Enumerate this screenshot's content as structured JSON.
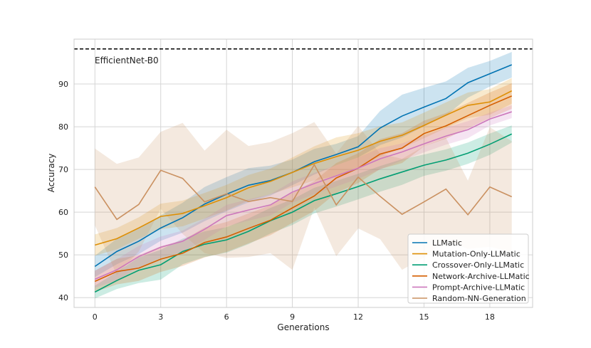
{
  "chart_data": {
    "type": "line",
    "title": "",
    "xlabel": "Generations",
    "ylabel": "Accuracy",
    "xlim": [
      -0.95,
      19.95
    ],
    "ylim": [
      37.7,
      100.5
    ],
    "xticks": [
      0,
      3,
      6,
      9,
      12,
      15,
      18
    ],
    "yticks": [
      40,
      50,
      60,
      70,
      80,
      90
    ],
    "grid": true,
    "legend_position": "bottom-right",
    "x": [
      0,
      1,
      2,
      3,
      4,
      5,
      6,
      7,
      8,
      9,
      10,
      11,
      12,
      13,
      14,
      15,
      16,
      17,
      18,
      19
    ],
    "reference_line": {
      "label": "EfficientNet-B0",
      "value": 98.2,
      "color": "#000000",
      "style": "dashed"
    },
    "series": [
      {
        "name": "LLMatic",
        "color": "#0173b2",
        "values": [
          47.3,
          50.8,
          53.2,
          56.3,
          58.7,
          61.9,
          64.2,
          66.3,
          67.4,
          69.3,
          71.8,
          73.5,
          75.3,
          79.7,
          82.5,
          84.6,
          86.6,
          90.3,
          92.4,
          94.5
        ],
        "band_halfwidth": [
          2.5,
          3,
          3,
          3,
          3.5,
          4,
          4,
          4,
          3.5,
          3,
          3,
          2.5,
          2.5,
          4,
          5,
          4.5,
          4,
          3.5,
          3,
          3
        ]
      },
      {
        "name": "Mutation-Only-LLMatic",
        "color": "#de8f05",
        "values": [
          52.3,
          53.8,
          56.3,
          59.0,
          59.7,
          61.5,
          63.4,
          65.7,
          67.2,
          69.3,
          71.4,
          73.0,
          74.5,
          76.6,
          78.0,
          80.3,
          82.7,
          85.0,
          85.8,
          88.4
        ],
        "band_halfwidth": [
          2.5,
          2.5,
          2.5,
          3,
          3,
          3,
          3,
          3,
          3,
          3.5,
          4,
          4.5,
          4,
          3.5,
          3,
          3,
          3,
          3,
          3,
          3
        ]
      },
      {
        "name": "Crossover-Only-LLMatic",
        "color": "#029e73",
        "values": [
          41.3,
          44.0,
          46.4,
          47.7,
          50.8,
          52.5,
          53.5,
          55.5,
          58.0,
          60.0,
          62.7,
          64.3,
          66.0,
          67.8,
          69.4,
          71.0,
          72.2,
          73.8,
          75.9,
          78.3
        ],
        "band_halfwidth": [
          1.5,
          2,
          3,
          3.5,
          3,
          3,
          3,
          3,
          3,
          3,
          3,
          3,
          3,
          3,
          3,
          2.5,
          2.5,
          2.5,
          2.5,
          2
        ]
      },
      {
        "name": "Network-Archive-LLMatic",
        "color": "#d55e00",
        "values": [
          43.8,
          46.1,
          46.9,
          49.0,
          50.4,
          52.9,
          54.2,
          56.2,
          58.1,
          61.0,
          63.8,
          68.0,
          70.3,
          73.6,
          75.0,
          78.4,
          80.2,
          82.6,
          85.0,
          87.2
        ],
        "band_halfwidth": [
          2.5,
          3,
          3,
          3,
          3,
          3.5,
          3.5,
          3.5,
          3.5,
          3.5,
          3.5,
          3.5,
          3.5,
          3.5,
          3.5,
          3,
          3,
          3,
          3,
          3
        ]
      },
      {
        "name": "Prompt-Archive-LLMatic",
        "color": "#cc78bc",
        "values": [
          44.3,
          46.5,
          49.6,
          51.8,
          53.2,
          56.0,
          59.2,
          60.5,
          61.7,
          64.7,
          66.7,
          68.5,
          70.3,
          72.5,
          74.1,
          76.0,
          77.8,
          79.3,
          81.8,
          83.5
        ],
        "band_halfwidth": [
          2,
          2.5,
          2.5,
          2.5,
          2.5,
          2.5,
          2.5,
          2.5,
          2.5,
          2.5,
          2.5,
          2.5,
          2.5,
          2.5,
          2,
          2,
          2,
          2,
          1.5,
          1.5
        ]
      },
      {
        "name": "Random-NN-Generation",
        "color": "#ca9161",
        "values": [
          65.9,
          58.3,
          61.8,
          69.8,
          67.9,
          62.4,
          64.3,
          62.5,
          63.4,
          62.5,
          71.1,
          61.7,
          68.2,
          63.7,
          59.5,
          62.4,
          65.4,
          59.4,
          65.9,
          63.6
        ],
        "band_halfwidth": [
          9,
          13,
          11,
          9,
          13,
          12,
          15,
          13,
          13,
          16,
          10,
          12,
          12,
          10,
          13,
          13,
          12,
          8,
          14,
          13
        ]
      }
    ]
  }
}
